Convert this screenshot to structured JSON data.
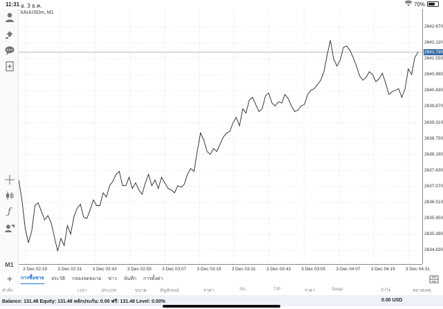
{
  "status_bar": {
    "time": "11:31",
    "date": "อ. 3 ธ.ค.",
    "battery": "70%",
    "battery_level": 0.7
  },
  "left_toolbar": {
    "icons": [
      "account-icon",
      "trade-icon",
      "chat-icon",
      "new-document-icon",
      "crosshair-icon",
      "candlestick-icon",
      "function-icon",
      "objects-icon"
    ],
    "timeframe": "M1"
  },
  "chart": {
    "symbol_label": "XAUUSDm, M1",
    "line_color": "#222222",
    "current_price_color": "#3a6ea5"
  },
  "chart_data": {
    "type": "line",
    "title": "XAUUSDm, M1",
    "xlabel": "",
    "ylabel": "",
    "ylim": [
      2634.35,
      2643.3
    ],
    "current_price": 2641.79,
    "price_ticks": [
      "2642.670",
      "2642.110",
      "2641.550",
      "2640.990",
      "2640.430",
      "2639.870",
      "2639.310",
      "2638.750",
      "2638.190",
      "2637.630",
      "2637.070",
      "2636.510",
      "2635.950",
      "2635.390",
      "2634.830"
    ],
    "price_tick_values": [
      2642.67,
      2642.11,
      2641.55,
      2640.99,
      2640.43,
      2639.87,
      2639.31,
      2638.75,
      2638.19,
      2637.63,
      2637.07,
      2636.51,
      2635.95,
      2635.39,
      2634.83
    ],
    "time_ticks": [
      "3 Dec 02:19",
      "3 Dec 02:31",
      "3 Dec 02:43",
      "3 Dec 02:55",
      "3 Dec 03:07",
      "3 Dec 03:19",
      "3 Dec 03:31",
      "3 Dec 03:43",
      "3 Dec 03:55",
      "3 Dec 04:07",
      "3 Dec 04:19",
      "3 Dec 04:31"
    ],
    "series": [
      {
        "values": [
          2637.3,
          2636.6,
          2635.6,
          2635.1,
          2635.5,
          2636.4,
          2636.5,
          2636.2,
          2635.9,
          2636.05,
          2635.8,
          2635.3,
          2634.8,
          2635.25,
          2635.0,
          2635.7,
          2635.4,
          2636.0,
          2636.3,
          2636.45,
          2636.0,
          2635.95,
          2636.25,
          2636.6,
          2636.4,
          2636.4,
          2636.85,
          2636.7,
          2637.1,
          2637.25,
          2637.5,
          2637.6,
          2637.1,
          2637.1,
          2637.4,
          2637.0,
          2637.2,
          2636.95,
          2636.8,
          2637.2,
          2637.5,
          2637.1,
          2637.3,
          2637.0,
          2637.4,
          2637.2,
          2637.0,
          2636.95,
          2636.85,
          2637.1,
          2637.05,
          2637.15,
          2637.5,
          2637.7,
          2637.6,
          2638.3,
          2638.95,
          2638.7,
          2638.3,
          2638.2,
          2638.4,
          2638.3,
          2638.55,
          2638.8,
          2638.95,
          2639.0,
          2639.3,
          2639.5,
          2639.2,
          2639.8,
          2639.65,
          2640.1,
          2640.2,
          2639.95,
          2639.7,
          2639.8,
          2640.25,
          2640.35,
          2640.0,
          2639.9,
          2640.05,
          2640.0,
          2640.3,
          2640.15,
          2639.9,
          2639.7,
          2639.75,
          2639.9,
          2639.95,
          2640.3,
          2640.45,
          2640.5,
          2640.65,
          2640.8,
          2641.1,
          2641.7,
          2642.2,
          2641.55,
          2641.3,
          2641.5,
          2641.95,
          2642.0,
          2641.85,
          2641.6,
          2641.3,
          2640.95,
          2640.8,
          2640.9,
          2641.1,
          2641.0,
          2640.75,
          2640.85,
          2641.05,
          2640.7,
          2640.3,
          2640.4,
          2640.45,
          2640.5,
          2640.2,
          2640.5,
          2641.2,
          2641.0,
          2641.6,
          2641.79
        ]
      }
    ]
  },
  "bottom": {
    "tabs": [
      "การซื้อขาย",
      "ประวัติ",
      "กล่องจดหมาย",
      "ข่าว",
      "บันทึก",
      "การตั้งค่า"
    ],
    "columns": [
      "คำสั่ง",
      "เวลา",
      "ประเภท",
      "ขนาด",
      "สัญลักษณ์",
      "ราคา",
      "S/L",
      "T/P",
      "ราคา",
      "Swap",
      "กำไร",
      "หมายเหตุ"
    ],
    "balance_text": "Balance: 131.48 Equity: 131.48 หลักประกัน: 0.00 ฟรี: 131.48 Level: 0.00%",
    "total": "0.00  USD"
  }
}
